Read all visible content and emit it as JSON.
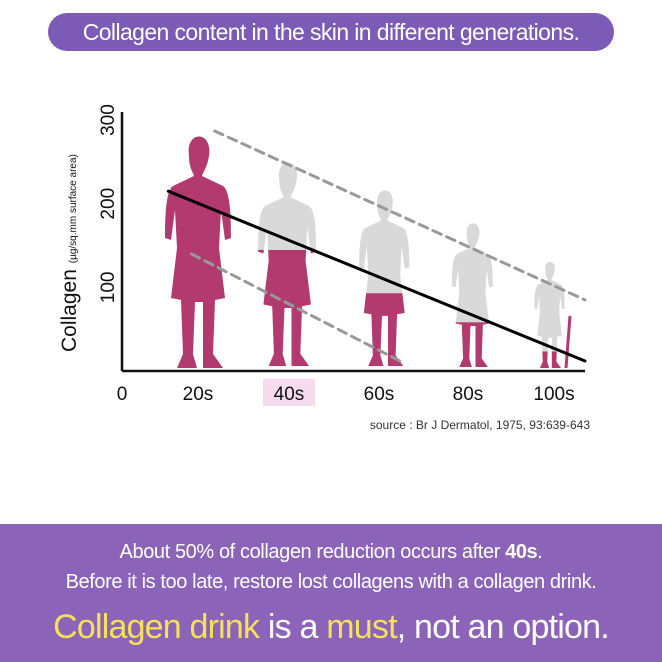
{
  "title": "Collagen content in the skin in different generations.",
  "source": "source : Br J Dermatol, 1975, 93:639-643",
  "chart_data": {
    "type": "line",
    "ylabel": "Collagen",
    "ylabel_unit": "(µg/sq.mm surface area)",
    "x_origin_label": "0",
    "categories": [
      "20s",
      "40s",
      "60s",
      "80s",
      "100s"
    ],
    "highlighted_category": "40s",
    "y_ticks": [
      100,
      200,
      300
    ],
    "ylim": [
      0,
      330
    ],
    "trend_line": {
      "style": "solid",
      "start": [
        10,
        215
      ],
      "end": [
        100,
        12
      ]
    },
    "upper_band": {
      "style": "dashed",
      "start": [
        20,
        287
      ],
      "end": [
        100,
        85
      ]
    },
    "lower_band": {
      "style": "dashed",
      "start": [
        15,
        140
      ],
      "end": [
        60,
        12
      ]
    },
    "generation_collagen_fill": [
      {
        "generation": "20s",
        "fill": 1.0
      },
      {
        "generation": "40s",
        "fill": 0.55
      },
      {
        "generation": "60s",
        "fill": 0.4
      },
      {
        "generation": "80s",
        "fill": 0.3
      },
      {
        "generation": "100s",
        "fill": 0.15
      }
    ],
    "colors": {
      "collagen": "#b23a6e",
      "silhouette": "#d9d9d9",
      "axis": "#111111",
      "dashed": "#999999",
      "highlight": "#f7dcef"
    }
  },
  "footer": {
    "line1_pre": "About 50% of collagen reduction occurs after ",
    "line1_bold": "40s",
    "line1_post": ".",
    "line2": "Before it is too late, restore lost collagens with a collagen drink.",
    "line3_part1": "Collagen drink",
    "line3_part2": " is a ",
    "line3_part3": "must",
    "line3_part4": ", not an option."
  },
  "colors": {
    "title_bg": "#7b5bb5",
    "footer_bg": "#8b63b8",
    "emphasis": "#f6e25a"
  }
}
